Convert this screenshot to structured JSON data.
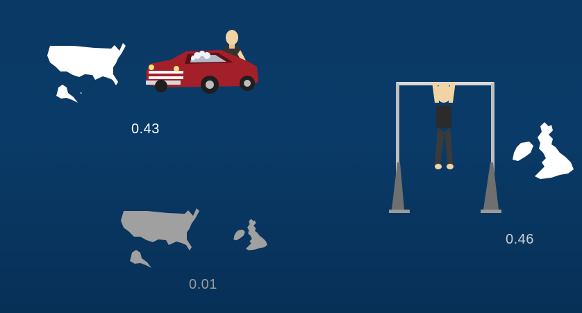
{
  "scenes": {
    "usa_car": {
      "value": "0.43",
      "map": "usa-map-icon",
      "illustration": "man-washing-red-car"
    },
    "usa_uk_combined": {
      "value": "0.01",
      "maps": [
        "usa-map-icon",
        "uk-map-icon"
      ]
    },
    "uk_pullup": {
      "value": "0.46",
      "map": "uk-map-icon",
      "illustration": "man-doing-pullups"
    }
  },
  "colors": {
    "background": "#0b3966",
    "highlight": "#ffffff",
    "muted": "#9a9a9a",
    "car": "#a3202a",
    "skin": "#f2d3a4"
  }
}
